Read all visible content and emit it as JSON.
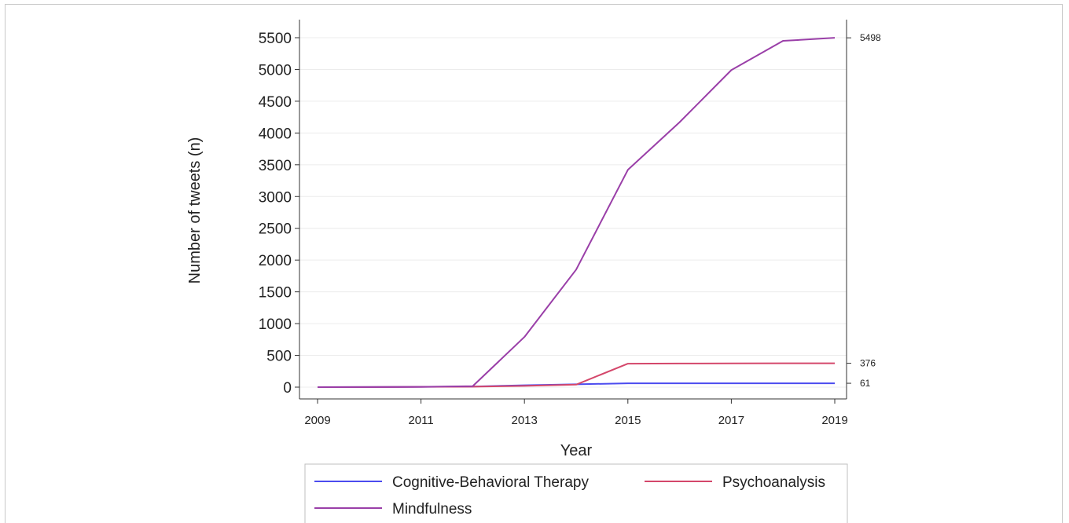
{
  "chart_data": {
    "type": "line",
    "title": "",
    "xlabel": "Year",
    "ylabel": "Number of tweets (n)",
    "xlim": [
      2009,
      2019
    ],
    "ylim": [
      0,
      5500
    ],
    "x_ticks": [
      "2009",
      "2011",
      "2013",
      "2015",
      "2017",
      "2019"
    ],
    "y_ticks": [
      "0",
      "500",
      "1000",
      "1500",
      "2000",
      "2500",
      "3000",
      "3500",
      "4000",
      "4500",
      "5000",
      "5500"
    ],
    "grid": true,
    "legend_position": "bottom",
    "x": [
      2009,
      2010,
      2011,
      2012,
      2013,
      2014,
      2015,
      2016,
      2017,
      2018,
      2019
    ],
    "series": [
      {
        "name": "Cognitive-Behavioral Therapy",
        "color": "#4b4bef",
        "values": [
          0,
          2,
          5,
          10,
          30,
          45,
          60,
          60,
          60,
          61,
          61
        ]
      },
      {
        "name": "Psychoanalysis",
        "color": "#d4476b",
        "values": [
          0,
          2,
          5,
          8,
          20,
          40,
          370,
          372,
          374,
          375,
          376
        ]
      },
      {
        "name": "Mindfulness",
        "color": "#9a3fa8",
        "values": [
          0,
          2,
          5,
          15,
          790,
          1850,
          3420,
          4170,
          4990,
          5450,
          5498
        ]
      }
    ],
    "end_labels": [
      "61",
      "376",
      "5498"
    ]
  }
}
